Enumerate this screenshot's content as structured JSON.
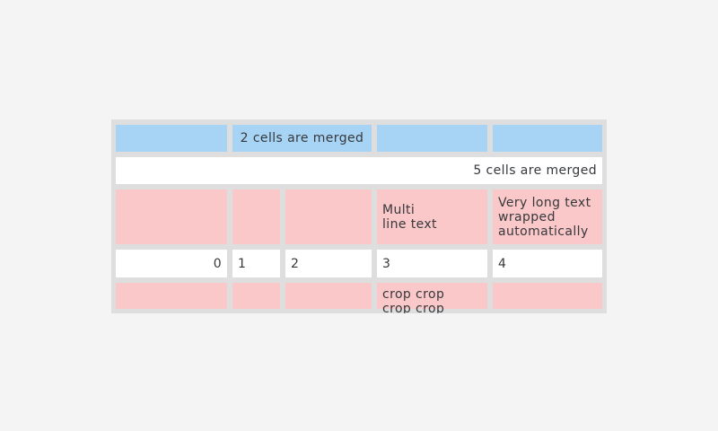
{
  "page": {
    "background": "#f4f4f4"
  },
  "table": {
    "frame_color": "#dedede",
    "cell_colors": {
      "blue": "#a7d4f5",
      "pink": "#fac8c8",
      "white": "#ffffff"
    },
    "text_color": "#36383c",
    "rows": [
      {
        "kind": "blue-header",
        "cells": [
          {
            "text": ""
          },
          {
            "text": "2 cells are merged",
            "colspan": 2
          },
          {
            "text": ""
          },
          {
            "text": ""
          }
        ]
      },
      {
        "kind": "merged-row",
        "cells": [
          {
            "text": "5 cells are merged",
            "colspan": 5
          }
        ]
      },
      {
        "kind": "pink-row",
        "cells": [
          {
            "text": ""
          },
          {
            "text": ""
          },
          {
            "text": ""
          },
          {
            "text": "Multi\nline text"
          },
          {
            "text": "Very long text wrapped automatically"
          }
        ]
      },
      {
        "kind": "number-row",
        "cells": [
          {
            "text": "0"
          },
          {
            "text": "1"
          },
          {
            "text": "2"
          },
          {
            "text": "3"
          },
          {
            "text": "4"
          }
        ]
      },
      {
        "kind": "cropped-pink-row",
        "cells": [
          {
            "text": ""
          },
          {
            "text": ""
          },
          {
            "text": ""
          },
          {
            "text": "crop crop\ncrop crop"
          },
          {
            "text": ""
          }
        ]
      }
    ]
  }
}
